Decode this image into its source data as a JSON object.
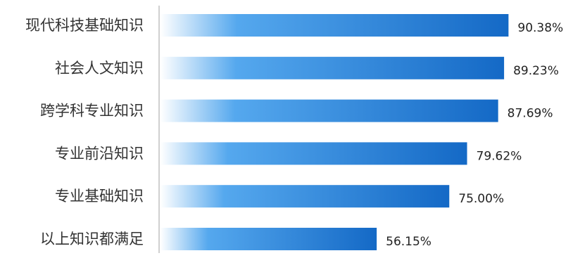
{
  "chart_data": {
    "type": "bar",
    "orientation": "horizontal",
    "categories": [
      "现代科技基础知识",
      "社会人文知识",
      "跨学科专业知识",
      "专业前沿知识",
      "专业基础知识",
      "以上知识都满足"
    ],
    "values": [
      90.38,
      89.23,
      87.69,
      79.62,
      75.0,
      56.15
    ],
    "value_labels": [
      "90.38%",
      "89.23%",
      "87.69%",
      "79.62%",
      "75.00%",
      "56.15%"
    ],
    "unit": "%",
    "xlim": [
      0,
      100
    ],
    "grid": false,
    "legend": "none",
    "title": "",
    "xlabel": "",
    "ylabel": "",
    "colors": {
      "bar_start": "#ffffff",
      "bar_mid": "#55a8ee",
      "bar_end": "#1469c6",
      "axis": "#d0d0d0",
      "category_text": "#333333",
      "value_text": "#222222"
    }
  }
}
